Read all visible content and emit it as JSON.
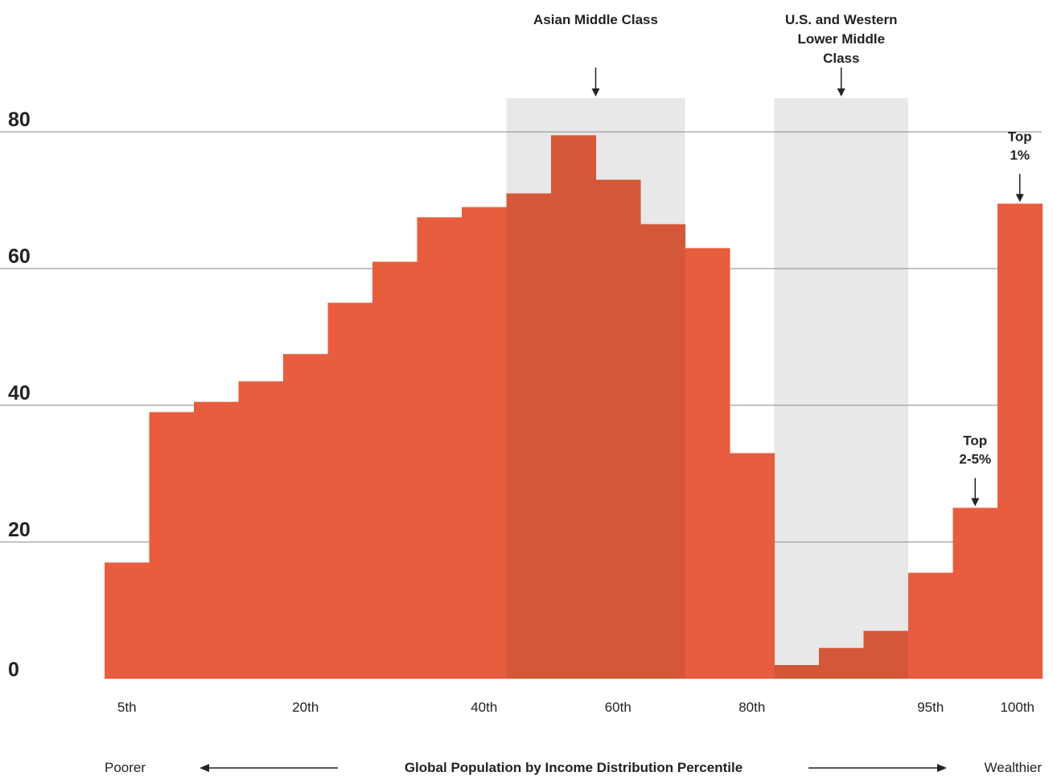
{
  "chart_data": {
    "type": "bar",
    "title": "",
    "xlabel": "Global Population by Income Distribution Percentile",
    "ylabel": "",
    "ylim": [
      0,
      80
    ],
    "grid": true,
    "y_ticks": [
      "0",
      "20",
      "40",
      "60",
      "80"
    ],
    "x_tick_labels": [
      {
        "label": "5th",
        "bin": 0
      },
      {
        "label": "20th",
        "bin": 4
      },
      {
        "label": "40th",
        "bin": 8
      },
      {
        "label": "60th",
        "bin": 11
      },
      {
        "label": "80th",
        "bin": 14
      },
      {
        "label": "95th",
        "bin": 18
      },
      {
        "label": "100th",
        "bin": 20
      }
    ],
    "values": [
      17,
      39,
      40.5,
      43.5,
      47.5,
      55,
      61,
      67.5,
      69,
      71,
      79.5,
      73,
      66.5,
      63,
      33,
      2,
      4.5,
      7,
      15.5,
      25,
      69.5
    ],
    "highlight_regions": [
      {
        "label": "Asian Middle Class",
        "bins": [
          9,
          12
        ]
      },
      {
        "label": "U.S. and Western Lower Middle Class",
        "lines": [
          "U.S. and Western",
          "Lower Middle",
          "Class"
        ],
        "bins": [
          15,
          17
        ]
      }
    ],
    "annotations": [
      {
        "lines": [
          "Top",
          "2-5%"
        ],
        "bin": 19
      },
      {
        "lines": [
          "Top",
          "1%"
        ],
        "bin": 20
      }
    ],
    "footer": {
      "left": "Poorer",
      "center": "Global Population by Income Distribution Percentile",
      "right": "Wealthier"
    },
    "colors": {
      "bar": "#e85d3e",
      "bar_highlight": "#d4573a",
      "region": "#e8e8e8",
      "grid": "#8a8a8a",
      "text": "#222222"
    }
  }
}
